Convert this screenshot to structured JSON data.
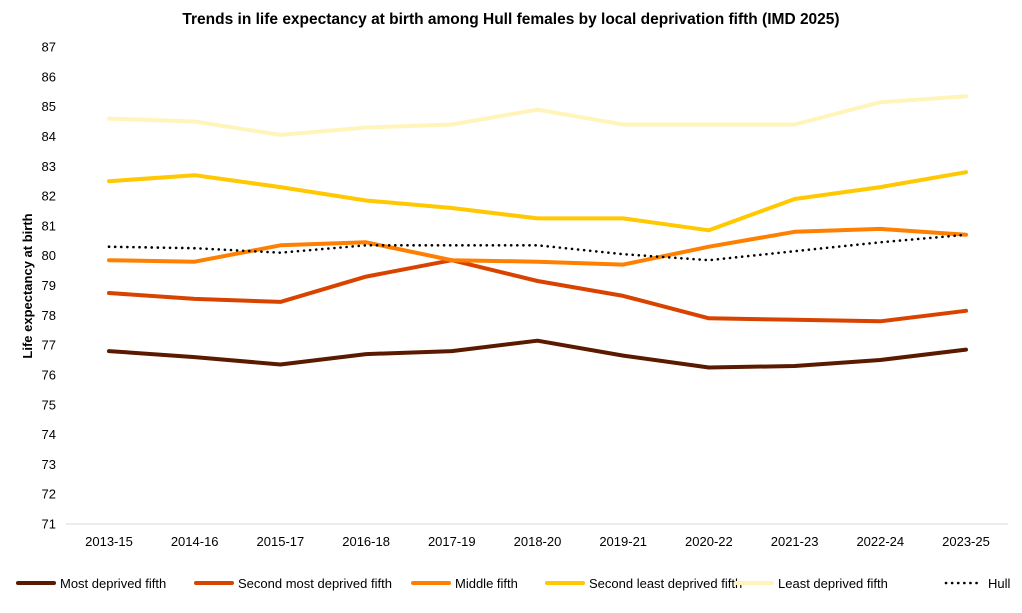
{
  "chart_data": {
    "type": "line",
    "title": "Trends in life expectancy at birth among Hull females by local deprivation fifth (IMD 2025)",
    "xlabel": "",
    "ylabel": "Life expectancy at birth",
    "ylim": [
      71,
      87
    ],
    "yticks": [
      71,
      72,
      73,
      74,
      75,
      76,
      77,
      78,
      79,
      80,
      81,
      82,
      83,
      84,
      85,
      86,
      87
    ],
    "grid": false,
    "legend_position": "bottom",
    "categories": [
      "2013-15",
      "2014-16",
      "2015-17",
      "2016-18",
      "2017-19",
      "2018-20",
      "2019-21",
      "2020-22",
      "2021-23",
      "2022-24",
      "2023-25"
    ],
    "series": [
      {
        "name": "Most deprived fifth",
        "color": "#5a1a00",
        "style": "solid",
        "values": [
          76.8,
          76.6,
          76.35,
          76.7,
          76.8,
          77.15,
          76.65,
          76.25,
          76.3,
          76.5,
          76.85
        ]
      },
      {
        "name": "Second most deprived fifth",
        "color": "#d94300",
        "style": "solid",
        "values": [
          78.75,
          78.55,
          78.45,
          79.3,
          79.85,
          79.15,
          78.65,
          77.9,
          77.85,
          77.8,
          78.15
        ]
      },
      {
        "name": "Middle fifth",
        "color": "#ff8000",
        "style": "solid",
        "values": [
          79.85,
          79.8,
          80.35,
          80.45,
          79.85,
          79.8,
          79.7,
          80.3,
          80.8,
          80.9,
          80.7
        ]
      },
      {
        "name": "Second least deprived fifth",
        "color": "#ffc800",
        "style": "solid",
        "values": [
          82.5,
          82.7,
          82.3,
          81.85,
          81.6,
          81.25,
          81.25,
          80.85,
          81.9,
          82.3,
          82.8
        ]
      },
      {
        "name": "Least deprived fifth",
        "color": "#fff5bb",
        "style": "solid",
        "values": [
          84.6,
          84.5,
          84.05,
          84.3,
          84.4,
          84.9,
          84.4,
          84.4,
          84.4,
          85.15,
          85.35
        ]
      },
      {
        "name": "Hull",
        "color": "#000000",
        "style": "dotted",
        "values": [
          80.3,
          80.25,
          80.1,
          80.35,
          80.35,
          80.35,
          80.05,
          79.85,
          80.15,
          80.45,
          80.7
        ]
      }
    ]
  }
}
